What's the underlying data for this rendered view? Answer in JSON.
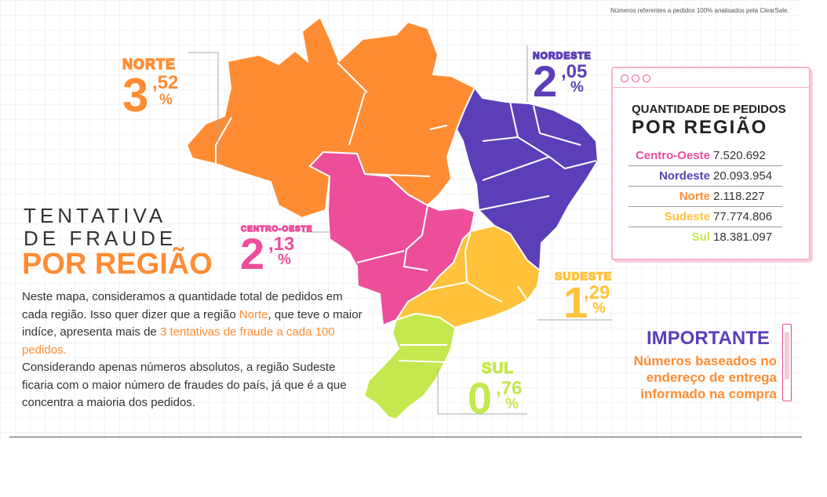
{
  "note": "Números referentes a pedidos 100% analisados pela ClearSale.",
  "title": {
    "line1": "TENTATIVA",
    "line2": "DE FRAUDE",
    "line3": "POR REGIÃO"
  },
  "paragraph": {
    "p1": "Neste mapa, consideramos a quantidade total de pedidos em cada região. Isso quer dizer que a região ",
    "p1_hl": "Norte",
    "p2": ", que teve o maior indíce, apresenta mais de ",
    "p2_hl": "3 tentativas de fraude a cada 100 pedidos.",
    "p3": "Considerando apenas números absolutos, a região Sudeste ficaria com o maior número de fraudes do país, já que é a que concentra a maioria dos pedidos."
  },
  "regions": {
    "norte": {
      "name": "NORTE",
      "int": "3",
      "dec": ",52",
      "pct": "%",
      "color": "#ff8c33"
    },
    "nordeste": {
      "name": "NORDESTE",
      "int": "2",
      "dec": ",05",
      "pct": "%",
      "color": "#5b3fb8"
    },
    "centro_oeste": {
      "name": "CENTRO-OESTE",
      "int": "2",
      "dec": ",13",
      "pct": "%",
      "color": "#ec4e9a"
    },
    "sudeste": {
      "name": "SUDESTE",
      "int": "1",
      "dec": ",29",
      "pct": "%",
      "color": "#ffc23a"
    },
    "sul": {
      "name": "SUL",
      "int": "0",
      "dec": ",76",
      "pct": "%",
      "color": "#c5e84f"
    }
  },
  "panel": {
    "title1": "QUANTIDADE DE PEDIDOS",
    "title2": "POR REGIÃO",
    "rows": [
      {
        "label": "Centro-Oeste",
        "value": "7.520.692",
        "color": "#ec4e9a"
      },
      {
        "label": "Nordeste",
        "value": "20.093.954",
        "color": "#5b3fb8"
      },
      {
        "label": "Norte",
        "value": "2.118.227",
        "color": "#ff8c33"
      },
      {
        "label": "Sudeste",
        "value": "77.774.806",
        "color": "#ffc23a"
      },
      {
        "label": "Sul",
        "value": "18.381.097",
        "color": "#c5e84f"
      }
    ]
  },
  "important": {
    "title": "IMPORTANTE",
    "body": "Números baseados no endereço de entrega informado na compra"
  }
}
